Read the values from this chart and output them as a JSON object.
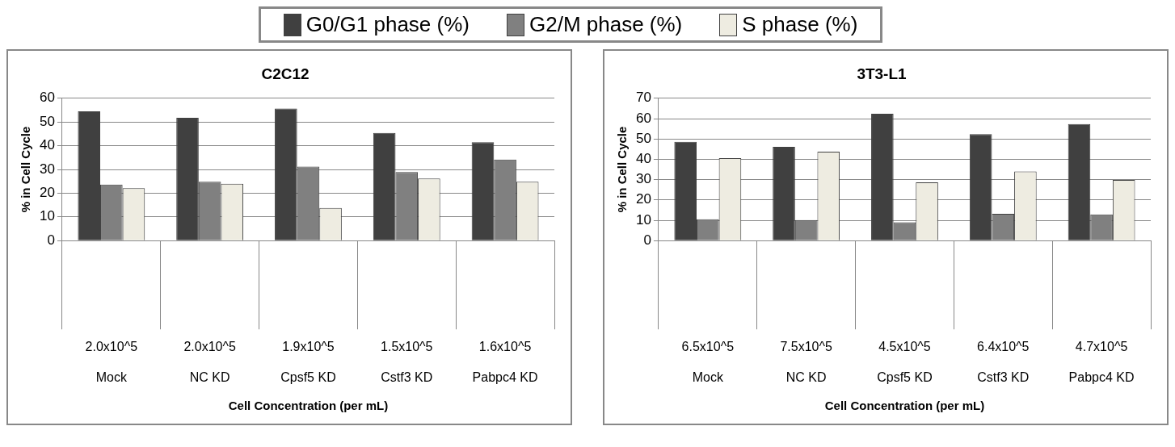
{
  "chart_data": [
    {
      "type": "bar",
      "title": "C2C12",
      "xlabel": "Cell Concentration (per mL)",
      "ylabel": "% in Cell Cycle",
      "categories": [
        "2.0x10^5\nMock",
        "2.0x10^5\nNC KD",
        "1.9x10^5\nCpsf5 KD",
        "1.5x10^5\nCstf3 KD",
        "1.6x10^5\nPabpc4 KD"
      ],
      "series": [
        {
          "name": "G0/G1 phase (%)",
          "color": "#404040",
          "values": [
            54.5,
            51.8,
            55.7,
            45.4,
            41.5
          ]
        },
        {
          "name": "G2/M phase (%)",
          "color": "#808080",
          "values": [
            23.6,
            24.8,
            31.2,
            28.9,
            34.2
          ]
        },
        {
          "name": "S phase (%)",
          "color": "#eeece1",
          "values": [
            22.1,
            24.0,
            13.8,
            26.2,
            24.8
          ]
        }
      ],
      "ylim": [
        0,
        60
      ],
      "yticks": [
        0,
        10,
        20,
        30,
        40,
        50,
        60
      ],
      "grid": "y",
      "legend": "top"
    },
    {
      "type": "bar",
      "title": "3T3-L1",
      "xlabel": "Cell Concentration (per mL)",
      "ylabel": "% in Cell Cycle",
      "categories": [
        "6.5x10^5\nMock",
        "7.5x10^5\nNC KD",
        "4.5x10^5\nCpsf5 KD",
        "6.4x10^5\nCstf3 KD",
        "4.7x10^5\nPabpc4 KD"
      ],
      "series": [
        {
          "color": "#404040",
          "values": [
            48.6,
            46.1,
            62.4,
            52.4,
            57.3
          ]
        },
        {
          "color": "#808080",
          "values": [
            10.5,
            10.1,
            9.0,
            13.2,
            12.9
          ]
        },
        {
          "color": "#eeece1",
          "values": [
            40.6,
            43.7,
            28.7,
            34.0,
            29.8
          ]
        }
      ],
      "ylim": [
        0,
        70
      ],
      "yticks": [
        0,
        10,
        20,
        30,
        40,
        50,
        60,
        70
      ],
      "grid": "y"
    }
  ]
}
